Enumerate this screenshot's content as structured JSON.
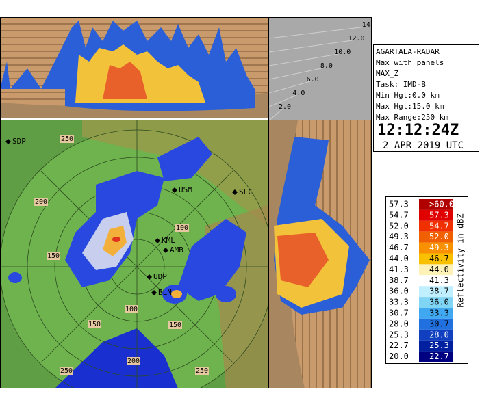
{
  "info": {
    "station": "AGARTALA-RADAR",
    "product": "Max with panels",
    "field": "MAX_Z",
    "task": "Task: IMD-B",
    "min_height": "Min Hgt:0.0 km",
    "max_height": "Max Hgt:15.0 km",
    "max_range": "Max Range:250 km",
    "time": "12:12:24Z",
    "date": "2 APR 2019 UTC"
  },
  "height_labels": [
    "2.0",
    "4.0",
    "6.0",
    "8.0",
    "10.0",
    "12.0",
    "14.0"
  ],
  "range_labels": [
    "250",
    "200",
    "150",
    "100",
    "150",
    "100",
    "200",
    "250",
    "250",
    "150"
  ],
  "station_labels": [
    "SDP",
    "USM",
    "SLC",
    "KML",
    "AMB",
    "UDP",
    "BLN"
  ],
  "legend": {
    "title": "Reflectivity in dBZ",
    "rows": [
      [
        "57.3",
        ">60.0"
      ],
      [
        "54.7",
        "57.3"
      ],
      [
        "52.0",
        "54.7"
      ],
      [
        "49.3",
        "52.0"
      ],
      [
        "46.7",
        "49.3"
      ],
      [
        "44.0",
        "46.7"
      ],
      [
        "41.3",
        "44.0"
      ],
      [
        "38.7",
        "41.3"
      ],
      [
        "36.0",
        "38.7"
      ],
      [
        "33.3",
        "36.0"
      ],
      [
        "30.7",
        "33.3"
      ],
      [
        "28.0",
        "30.7"
      ],
      [
        "25.3",
        "28.0"
      ],
      [
        "22.7",
        "25.3"
      ],
      [
        "20.0",
        "22.7"
      ]
    ]
  }
}
